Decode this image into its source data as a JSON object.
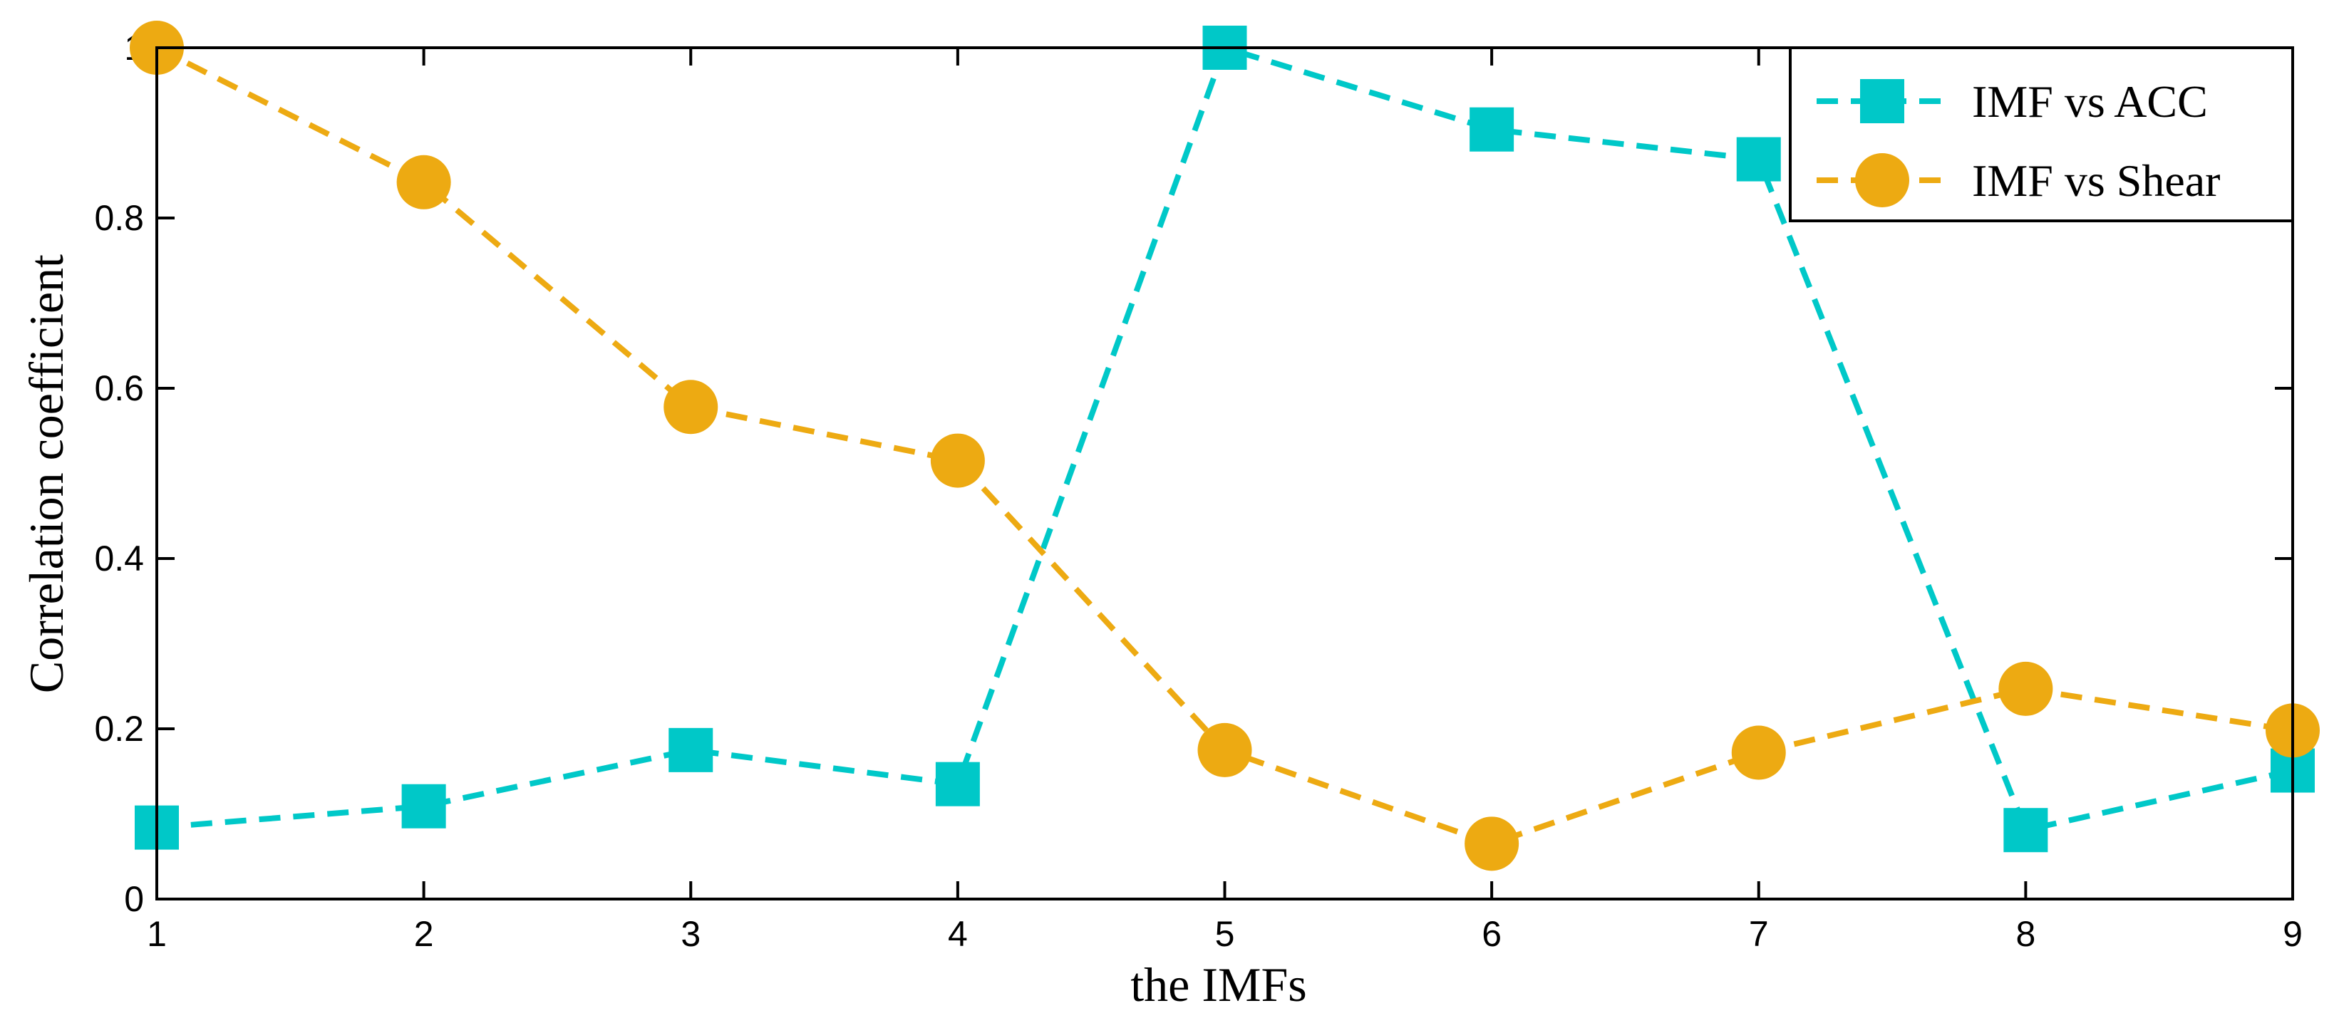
{
  "chart_data": {
    "type": "line",
    "xlabel": "the IMFs",
    "ylabel": "Correlation coefficient",
    "x": [
      1,
      2,
      3,
      4,
      5,
      6,
      7,
      8,
      9
    ],
    "xlim": [
      1,
      9
    ],
    "xticks": [
      1,
      2,
      3,
      4,
      5,
      6,
      7,
      8,
      9
    ],
    "ylim": [
      0,
      1
    ],
    "yticks": [
      0,
      0.2,
      0.4,
      0.6,
      0.8,
      1
    ],
    "legend": "upper right",
    "grid": false,
    "series": [
      {
        "name": "IMF vs ACC",
        "color": "#00c8c8",
        "marker": "square",
        "values": [
          0.084,
          0.109,
          0.175,
          0.135,
          1.0,
          0.904,
          0.869,
          0.081,
          0.151
        ]
      },
      {
        "name": "IMF vs Shear",
        "color": "#edaa12",
        "marker": "circle",
        "values": [
          1.0,
          0.842,
          0.578,
          0.515,
          0.175,
          0.065,
          0.172,
          0.247,
          0.198
        ]
      }
    ]
  }
}
